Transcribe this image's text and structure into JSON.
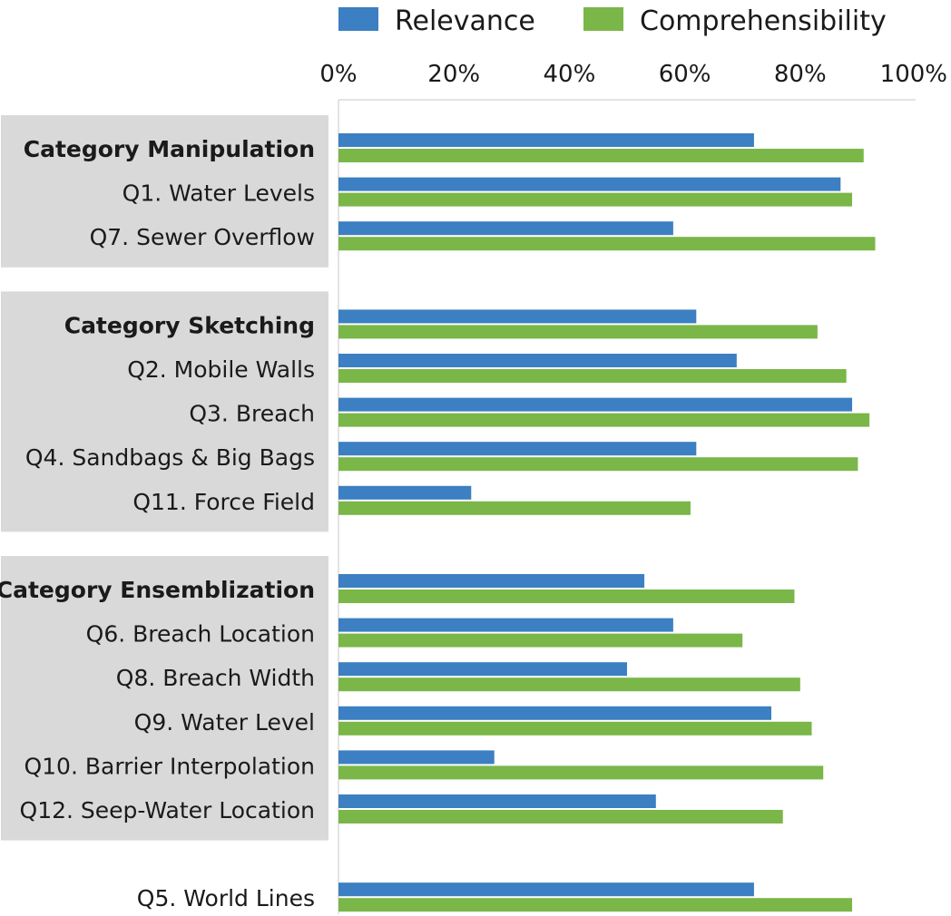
{
  "chart_data": {
    "type": "bar",
    "orientation": "horizontal",
    "legend": {
      "position": "top",
      "entries": [
        {
          "name": "Relevance",
          "color": "#3c7fc2"
        },
        {
          "name": "Comprehensibility",
          "color": "#7ab648"
        }
      ]
    },
    "x_ticks": [
      "0%",
      "20%",
      "40%",
      "60%",
      "80%",
      "100%"
    ],
    "xlim": [
      0,
      100
    ],
    "grid": false,
    "group_band_color": "#d9d9d9",
    "groups": [
      {
        "header": "Category Manipulation",
        "header_bar": true,
        "banded": true,
        "rows": [
          {
            "label": "Category Manipulation",
            "bold": true,
            "relevance": 72,
            "comprehensibility": 91
          },
          {
            "label": "Q1. Water Levels",
            "bold": false,
            "relevance": 87,
            "comprehensibility": 89
          },
          {
            "label": "Q7. Sewer Overflow",
            "bold": false,
            "relevance": 58,
            "comprehensibility": 93
          }
        ]
      },
      {
        "header": "Category Sketching",
        "banded": true,
        "rows": [
          {
            "label": "Category Sketching",
            "bold": true,
            "relevance": 62,
            "comprehensibility": 83
          },
          {
            "label": "Q2. Mobile Walls",
            "bold": false,
            "relevance": 69,
            "comprehensibility": 88
          },
          {
            "label": "Q3. Breach",
            "bold": false,
            "relevance": 89,
            "comprehensibility": 92
          },
          {
            "label": "Q4. Sandbags & Big Bags",
            "bold": false,
            "relevance": 62,
            "comprehensibility": 90
          },
          {
            "label": "Q11. Force Field",
            "bold": false,
            "relevance": 23,
            "comprehensibility": 61
          }
        ]
      },
      {
        "header": "Category Ensemblization",
        "banded": true,
        "rows": [
          {
            "label": "Category Ensemblization",
            "bold": true,
            "relevance": 53,
            "comprehensibility": 79
          },
          {
            "label": "Q6. Breach Location",
            "bold": false,
            "relevance": 58,
            "comprehensibility": 70
          },
          {
            "label": "Q8. Breach Width",
            "bold": false,
            "relevance": 50,
            "comprehensibility": 80
          },
          {
            "label": "Q9. Water Level",
            "bold": false,
            "relevance": 75,
            "comprehensibility": 82
          },
          {
            "label": "Q10. Barrier Interpolation",
            "bold": false,
            "relevance": 27,
            "comprehensibility": 84
          },
          {
            "label": "Q12. Seep-Water Location",
            "bold": false,
            "relevance": 55,
            "comprehensibility": 77
          }
        ]
      },
      {
        "header": "",
        "banded": false,
        "rows": [
          {
            "label": "Q5. World Lines",
            "bold": false,
            "relevance": 72,
            "comprehensibility": 89
          }
        ]
      }
    ]
  }
}
